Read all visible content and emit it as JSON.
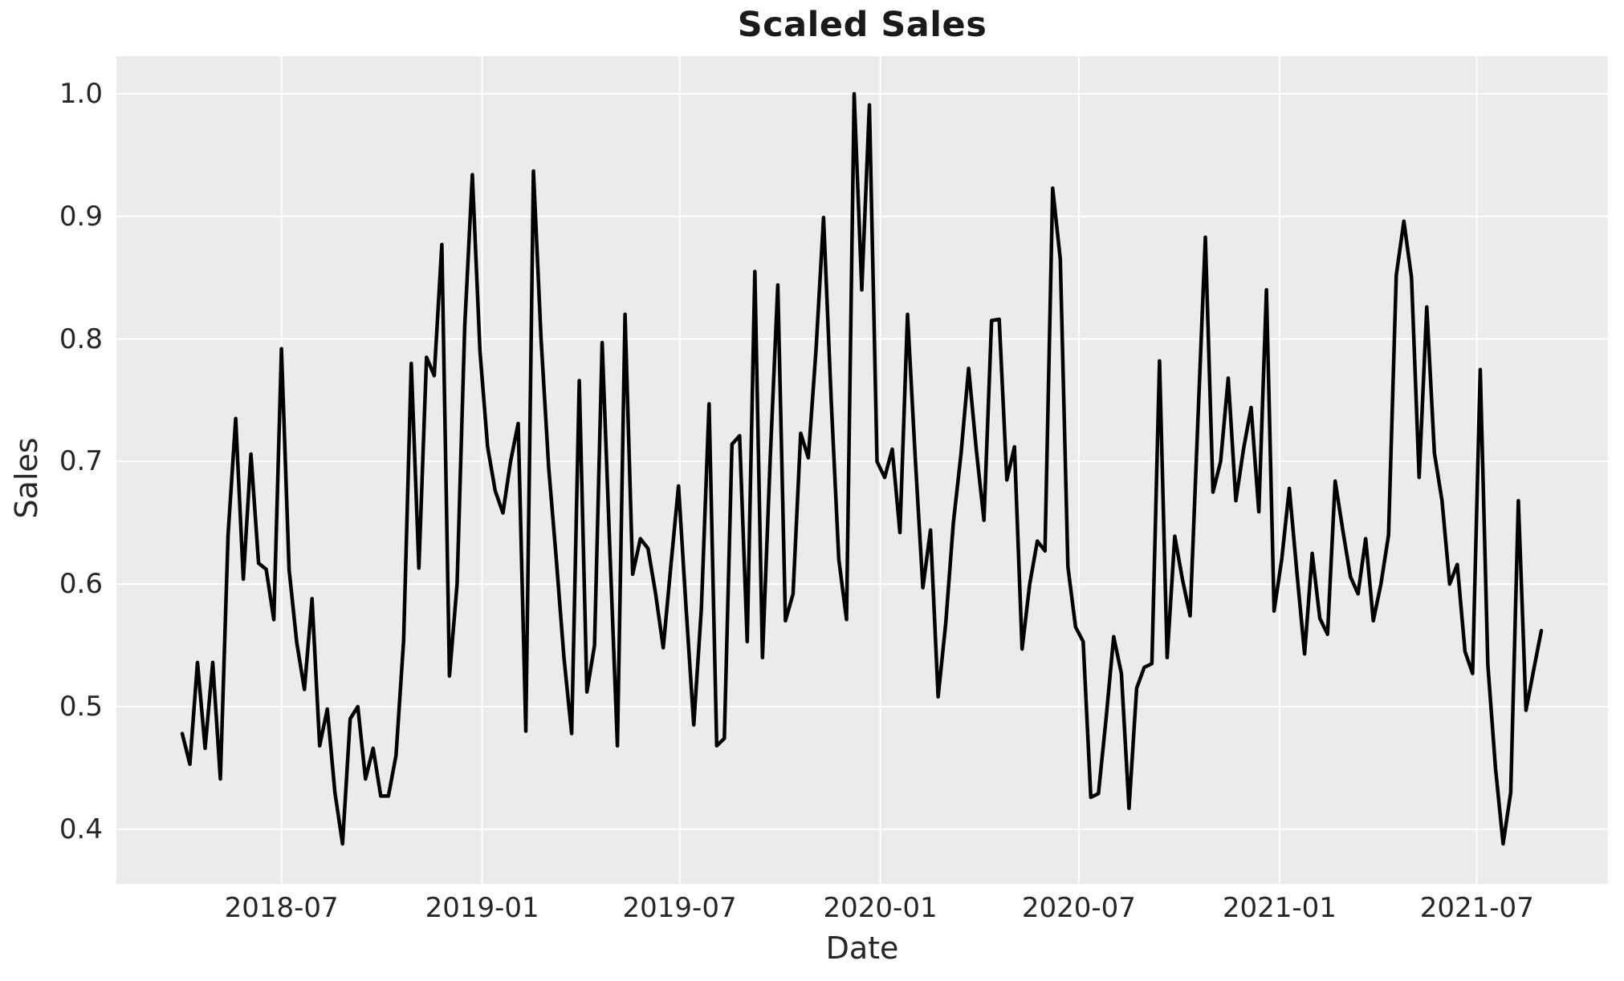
{
  "title": "Scaled Sales",
  "chart_data": {
    "type": "line",
    "title": "Scaled Sales",
    "xlabel": "Date",
    "ylabel": "Sales",
    "legend": null,
    "grid": true,
    "plot_bg_color": "#ebebeb",
    "grid_color": "#ffffff",
    "line_color": "#000000",
    "text_color": "#262626",
    "title_color": "#1a1a1a",
    "x_start_date": "2018-04-01",
    "x_end_date": "2021-08-29",
    "x_step_days": 7,
    "ylim": [
      0.3553,
      1.0307
    ],
    "xlim_weeks": [
      -8.62,
      186.73
    ],
    "yticks": [
      0.4,
      0.5,
      0.6,
      0.7,
      0.8,
      0.9,
      1.0
    ],
    "ytick_labels": [
      "0.4",
      "0.5",
      "0.6",
      "0.7",
      "0.8",
      "0.9",
      "1.0"
    ],
    "xticks": [
      {
        "label": "2018-07",
        "week": 13.0
      },
      {
        "label": "2019-01",
        "week": 39.2857
      },
      {
        "label": "2019-07",
        "week": 65.1429
      },
      {
        "label": "2020-01",
        "week": 91.4286
      },
      {
        "label": "2020-07",
        "week": 117.4286
      },
      {
        "label": "2021-01",
        "week": 143.7143
      },
      {
        "label": "2021-07",
        "week": 169.5714
      }
    ],
    "values": [
      0.478,
      0.453,
      0.536,
      0.466,
      0.536,
      0.441,
      0.64,
      0.735,
      0.604,
      0.706,
      0.617,
      0.612,
      0.571,
      0.792,
      0.612,
      0.552,
      0.514,
      0.588,
      0.468,
      0.498,
      0.43,
      0.388,
      0.49,
      0.5,
      0.441,
      0.466,
      0.427,
      0.427,
      0.46,
      0.554,
      0.78,
      0.613,
      0.785,
      0.77,
      0.877,
      0.525,
      0.6,
      0.81,
      0.934,
      0.79,
      0.712,
      0.676,
      0.658,
      0.7,
      0.731,
      0.48,
      0.937,
      0.8,
      0.695,
      0.62,
      0.54,
      0.478,
      0.766,
      0.512,
      0.55,
      0.797,
      0.63,
      0.468,
      0.82,
      0.608,
      0.637,
      0.629,
      0.592,
      0.548,
      0.615,
      0.68,
      0.58,
      0.485,
      0.58,
      0.747,
      0.468,
      0.474,
      0.714,
      0.721,
      0.553,
      0.855,
      0.54,
      0.7,
      0.844,
      0.57,
      0.592,
      0.723,
      0.703,
      0.79,
      0.899,
      0.75,
      0.62,
      0.571,
      1.0,
      0.84,
      0.991,
      0.7,
      0.687,
      0.71,
      0.642,
      0.82,
      0.703,
      0.597,
      0.644,
      0.508,
      0.568,
      0.65,
      0.706,
      0.776,
      0.71,
      0.652,
      0.815,
      0.816,
      0.685,
      0.712,
      0.547,
      0.6,
      0.635,
      0.627,
      0.923,
      0.865,
      0.614,
      0.565,
      0.553,
      0.426,
      0.429,
      0.49,
      0.557,
      0.527,
      0.417,
      0.515,
      0.532,
      0.535,
      0.782,
      0.54,
      0.639,
      0.604,
      0.574,
      0.73,
      0.883,
      0.675,
      0.7,
      0.768,
      0.668,
      0.71,
      0.744,
      0.659,
      0.84,
      0.578,
      0.62,
      0.678,
      0.609,
      0.543,
      0.625,
      0.572,
      0.559,
      0.684,
      0.644,
      0.606,
      0.592,
      0.637,
      0.57,
      0.6,
      0.64,
      0.852,
      0.896,
      0.85,
      0.687,
      0.826,
      0.707,
      0.668,
      0.6,
      0.616,
      0.545,
      0.527,
      0.775,
      0.534,
      0.45,
      0.388,
      0.43,
      0.668,
      0.497,
      0.53,
      0.562
    ]
  }
}
